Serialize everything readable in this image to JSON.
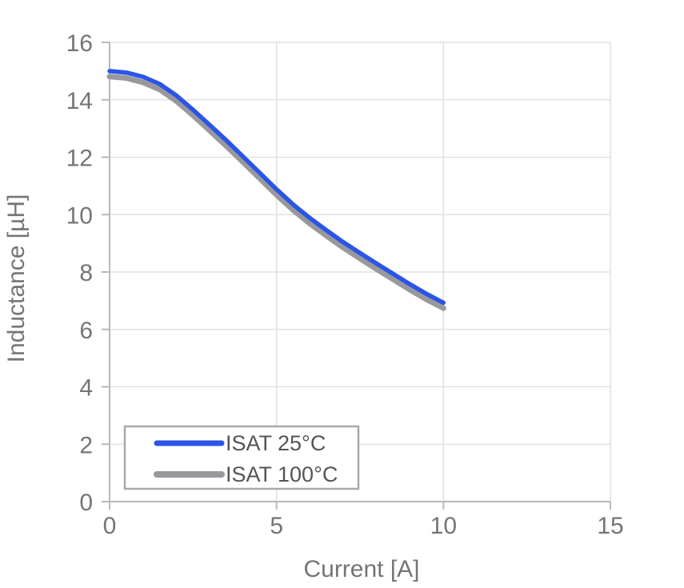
{
  "chart_data": {
    "type": "line",
    "title": "",
    "xlabel": "Current [A]",
    "ylabel": "Inductance [µH]",
    "xlim": [
      0,
      15
    ],
    "ylim": [
      0,
      16
    ],
    "x_ticks": [
      0,
      5,
      10,
      15
    ],
    "y_ticks": [
      0,
      2,
      4,
      6,
      8,
      10,
      12,
      14,
      16
    ],
    "grid": true,
    "legend_position": "bottom-left",
    "x": [
      0,
      0.5,
      1,
      1.5,
      2,
      2.5,
      3,
      3.5,
      4,
      4.5,
      5,
      5.5,
      6,
      6.5,
      7,
      7.5,
      8,
      8.5,
      9,
      9.5,
      10
    ],
    "series": [
      {
        "name": "ISAT 25°C",
        "color": "#2b54e8",
        "line_width": 5.5,
        "values": [
          15.0,
          14.95,
          14.8,
          14.55,
          14.15,
          13.65,
          13.12,
          12.58,
          12.02,
          11.45,
          10.88,
          10.35,
          9.88,
          9.45,
          9.04,
          8.66,
          8.29,
          7.93,
          7.57,
          7.23,
          6.93
        ]
      },
      {
        "name": "ISAT 100°C",
        "color": "#97999c",
        "line_width": 7,
        "values": [
          14.81,
          14.76,
          14.61,
          14.36,
          13.96,
          13.46,
          12.93,
          12.39,
          11.83,
          11.26,
          10.69,
          10.16,
          9.69,
          9.26,
          8.85,
          8.47,
          8.1,
          7.74,
          7.38,
          7.04,
          6.74
        ]
      }
    ],
    "colors": {
      "grid": "#e1e1e1",
      "axis": "#b9b9b9",
      "tick_label": "#757575",
      "axis_title": "#757575",
      "legend_text": "#555555",
      "legend_border": "#a9a9a9",
      "legend_background": "#ffffff"
    }
  }
}
